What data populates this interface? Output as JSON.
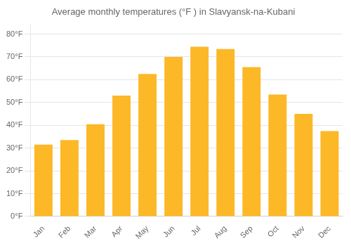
{
  "chart_data": {
    "type": "bar",
    "title": "Average monthly temperatures (°F ) in Slavyansk-na-Kubani",
    "categories": [
      "Jan",
      "Feb",
      "Mar",
      "Apr",
      "May",
      "Jun",
      "Jul",
      "Aug",
      "Sep",
      "Oct",
      "Nov",
      "Dec"
    ],
    "values": [
      31.5,
      33.5,
      40.5,
      53.0,
      62.5,
      70.0,
      74.5,
      73.5,
      65.5,
      53.5,
      45.0,
      37.5
    ],
    "color": "#FDB827",
    "ylim": [
      0,
      84
    ],
    "yticks": [
      {
        "value": 0,
        "label": "0°F"
      },
      {
        "value": 10,
        "label": "10°F"
      },
      {
        "value": 20,
        "label": "20°F"
      },
      {
        "value": 30,
        "label": "30°F"
      },
      {
        "value": 40,
        "label": "40°F"
      },
      {
        "value": 50,
        "label": "50°F"
      },
      {
        "value": 60,
        "label": "60°F"
      },
      {
        "value": 70,
        "label": "70°F"
      },
      {
        "value": 80,
        "label": "80°F"
      }
    ],
    "grid": true
  }
}
